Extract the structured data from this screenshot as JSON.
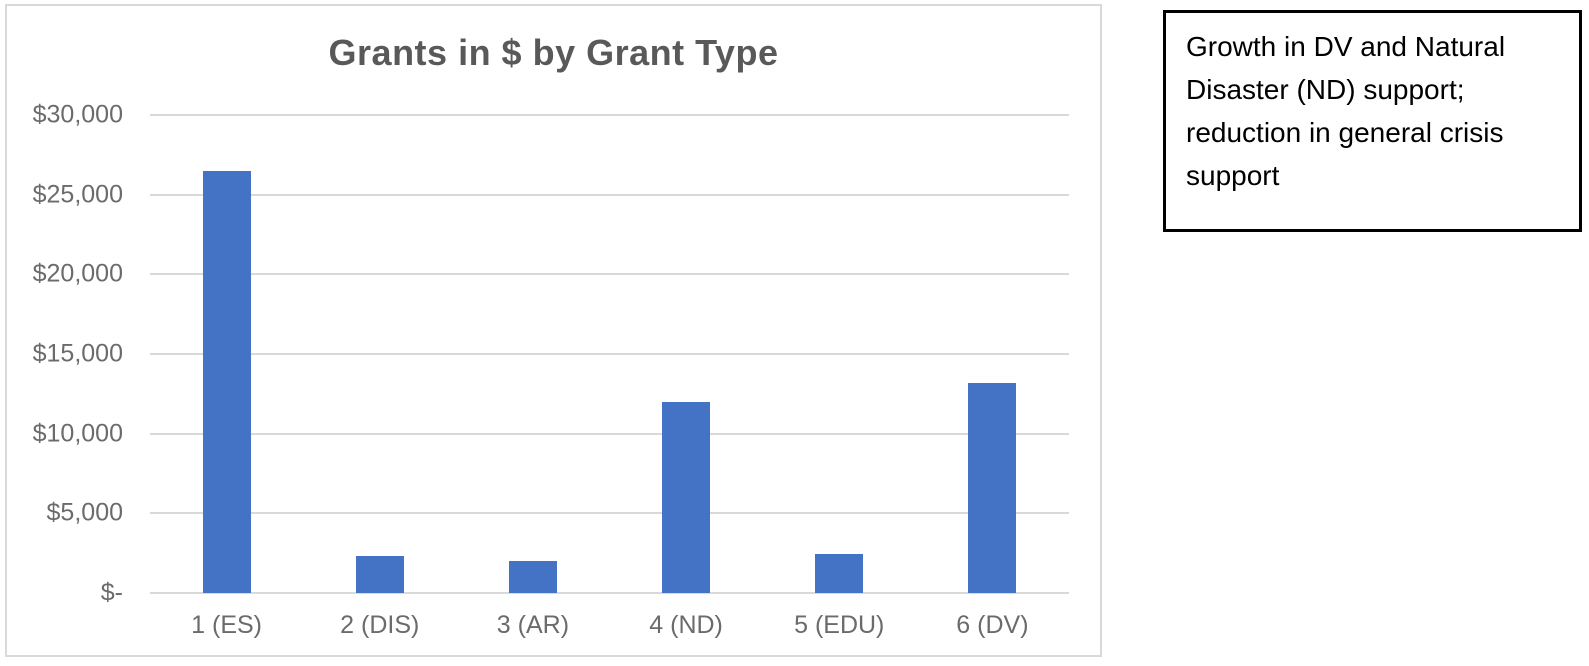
{
  "chart_data": {
    "type": "bar",
    "title": "Grants in $ by Grant Type",
    "categories": [
      "1 (ES)",
      "2 (DIS)",
      "3 (AR)",
      "4 (ND)",
      "5 (EDU)",
      "6 (DV)"
    ],
    "values": [
      26500,
      2350,
      2000,
      12000,
      2450,
      13200
    ],
    "xlabel": "",
    "ylabel": "",
    "ylim": [
      0,
      30000
    ],
    "y_tick_values": [
      30000,
      25000,
      20000,
      15000,
      10000,
      5000,
      0
    ],
    "y_tick_labels": [
      "$30,000",
      "$25,000",
      "$20,000",
      "$15,000",
      "$10,000",
      "$5,000",
      "$-"
    ],
    "grid": true,
    "legend_position": "none",
    "bar_color": "#4472c4",
    "gridline_color": "#d9d9d9",
    "title_color": "#595959",
    "axis_label_color": "#6b6b6b"
  },
  "annotation_box": {
    "text": "Growth in DV and Natural Disaster (ND) support; reduction in general crisis support",
    "border_color": "#000000",
    "text_color": "#000000"
  }
}
